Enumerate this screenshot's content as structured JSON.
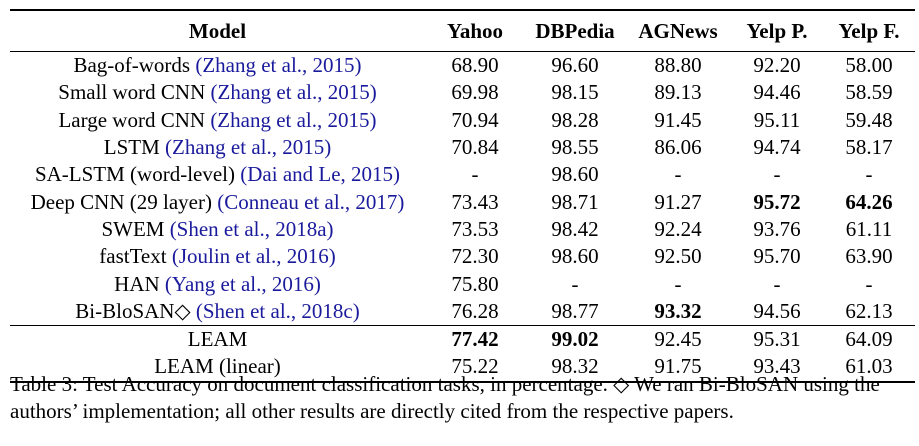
{
  "table": {
    "headers": [
      "Model",
      "Yahoo",
      "DBPedia",
      "AGNews",
      "Yelp P.",
      "Yelp F."
    ],
    "rows": [
      {
        "name": "Bag-of-words",
        "cite": "(Zhang et al., 2015)",
        "values": [
          "68.90",
          "96.60",
          "88.80",
          "92.20",
          "58.00"
        ],
        "bold": [
          false,
          false,
          false,
          false,
          false
        ]
      },
      {
        "name": "Small word CNN",
        "cite": "(Zhang et al., 2015)",
        "values": [
          "69.98",
          "98.15",
          "89.13",
          "94.46",
          "58.59"
        ],
        "bold": [
          false,
          false,
          false,
          false,
          false
        ]
      },
      {
        "name": "Large word CNN",
        "cite": "(Zhang et al., 2015)",
        "values": [
          "70.94",
          "98.28",
          "91.45",
          "95.11",
          "59.48"
        ],
        "bold": [
          false,
          false,
          false,
          false,
          false
        ]
      },
      {
        "name": "LSTM",
        "cite": "(Zhang et al., 2015)",
        "values": [
          "70.84",
          "98.55",
          "86.06",
          "94.74",
          "58.17"
        ],
        "bold": [
          false,
          false,
          false,
          false,
          false
        ]
      },
      {
        "name": "SA-LSTM (word-level)",
        "cite": "(Dai and Le, 2015)",
        "values": [
          "-",
          "98.60",
          "-",
          "-",
          "-"
        ],
        "bold": [
          false,
          false,
          false,
          false,
          false
        ]
      },
      {
        "name": "Deep CNN (29 layer)",
        "cite": "(Conneau et al., 2017)",
        "values": [
          "73.43",
          "98.71",
          "91.27",
          "95.72",
          "64.26"
        ],
        "bold": [
          false,
          false,
          false,
          true,
          true
        ]
      },
      {
        "name": "SWEM",
        "cite": "(Shen et al., 2018a)",
        "values": [
          "73.53",
          "98.42",
          "92.24",
          "93.76",
          "61.11"
        ],
        "bold": [
          false,
          false,
          false,
          false,
          false
        ]
      },
      {
        "name": "fastText",
        "cite": "(Joulin et al., 2016)",
        "values": [
          "72.30",
          "98.60",
          "92.50",
          "95.70",
          "63.90"
        ],
        "bold": [
          false,
          false,
          false,
          false,
          false
        ]
      },
      {
        "name": "HAN",
        "cite": "(Yang et al., 2016)",
        "values": [
          "75.80",
          "-",
          "-",
          "-",
          "-"
        ],
        "bold": [
          false,
          false,
          false,
          false,
          false
        ]
      },
      {
        "name": "Bi-BloSAN◇",
        "cite": "(Shen et al., 2018c)",
        "values": [
          "76.28",
          "98.77",
          "93.32",
          "94.56",
          "62.13"
        ],
        "bold": [
          false,
          false,
          true,
          false,
          false
        ]
      },
      {
        "name": "LEAM",
        "cite": "",
        "values": [
          "77.42",
          "99.02",
          "92.45",
          "95.31",
          "64.09"
        ],
        "bold": [
          true,
          true,
          false,
          false,
          false
        ]
      },
      {
        "name": "LEAM (linear)",
        "cite": "",
        "values": [
          "75.22",
          "98.32",
          "91.75",
          "93.43",
          "61.03"
        ],
        "bold": [
          false,
          false,
          false,
          false,
          false
        ]
      }
    ]
  },
  "caption": {
    "line1": "Table 3: Test Accuracy on document classification tasks, in percentage. ◇ We ran Bi-BloSAN using the",
    "line2": "authors’ implementation; all other results are directly cited from the respective papers."
  },
  "colors": {
    "citation": "#1a1a9c",
    "text": "#000000"
  }
}
